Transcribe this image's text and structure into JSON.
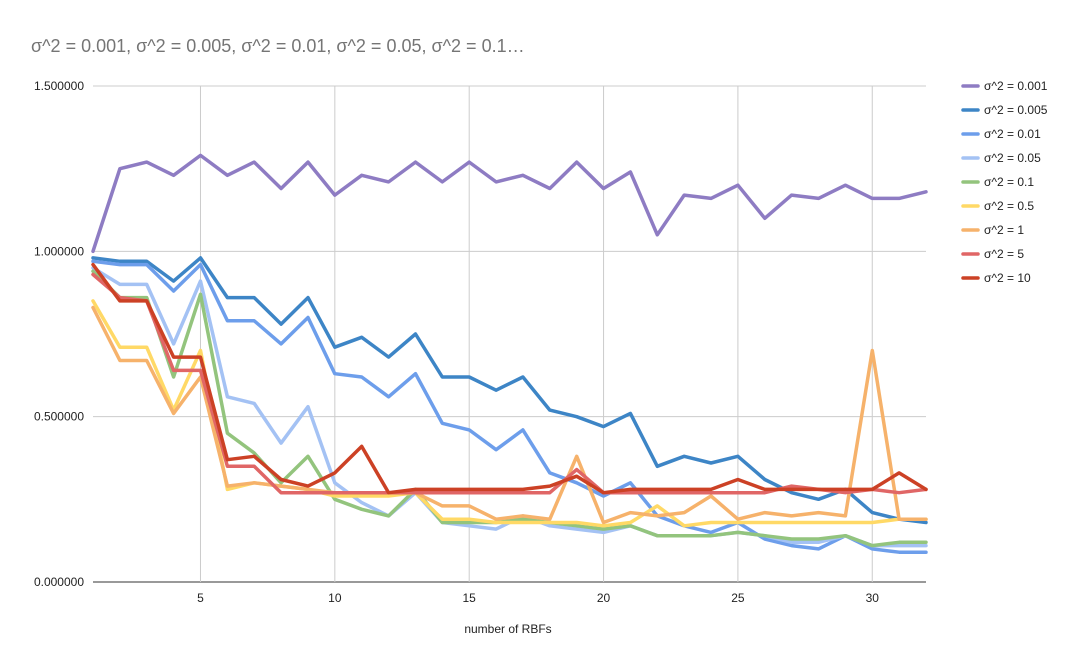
{
  "chart_data": {
    "type": "line",
    "title": "σ^2 = 0.001, σ^2 = 0.005, σ^2 = 0.01, σ^2 = 0.05, σ^2 = 0.1…",
    "xlabel": "number of RBFs",
    "ylabel": "",
    "xlim": [
      1,
      32
    ],
    "ylim": [
      0,
      1.5
    ],
    "x_ticks": [
      5,
      10,
      15,
      20,
      25,
      30
    ],
    "y_ticks": [
      "0.000000",
      "0.500000",
      "1.000000",
      "1.500000"
    ],
    "grid": true,
    "legend_position": "right",
    "x": [
      1,
      2,
      3,
      4,
      5,
      6,
      7,
      8,
      9,
      10,
      11,
      12,
      13,
      14,
      15,
      16,
      17,
      18,
      19,
      20,
      21,
      22,
      23,
      24,
      25,
      26,
      27,
      28,
      29,
      30,
      31,
      32
    ],
    "series": [
      {
        "name": "σ^2 = 0.001",
        "color": "#8e7cc3",
        "values": [
          1.0,
          1.25,
          1.27,
          1.23,
          1.29,
          1.23,
          1.27,
          1.19,
          1.27,
          1.17,
          1.23,
          1.21,
          1.27,
          1.21,
          1.27,
          1.21,
          1.23,
          1.19,
          1.27,
          1.19,
          1.24,
          1.05,
          1.17,
          1.16,
          1.2,
          1.1,
          1.17,
          1.16,
          1.2,
          1.16,
          1.16,
          1.18
        ]
      },
      {
        "name": "σ^2 = 0.005",
        "color": "#3d85c6",
        "values": [
          0.98,
          0.97,
          0.97,
          0.91,
          0.98,
          0.86,
          0.86,
          0.78,
          0.86,
          0.71,
          0.74,
          0.68,
          0.75,
          0.62,
          0.62,
          0.58,
          0.62,
          0.52,
          0.5,
          0.47,
          0.51,
          0.35,
          0.38,
          0.36,
          0.38,
          0.31,
          0.27,
          0.25,
          0.28,
          0.21,
          0.19,
          0.18
        ]
      },
      {
        "name": "σ^2 = 0.01",
        "color": "#6d9eeb",
        "values": [
          0.97,
          0.96,
          0.96,
          0.88,
          0.96,
          0.79,
          0.79,
          0.72,
          0.8,
          0.63,
          0.62,
          0.56,
          0.63,
          0.48,
          0.46,
          0.4,
          0.46,
          0.33,
          0.3,
          0.26,
          0.3,
          0.2,
          0.17,
          0.15,
          0.18,
          0.13,
          0.11,
          0.1,
          0.14,
          0.1,
          0.09,
          0.09
        ]
      },
      {
        "name": "σ^2 = 0.05",
        "color": "#a4c2f4",
        "values": [
          0.95,
          0.9,
          0.9,
          0.72,
          0.91,
          0.56,
          0.54,
          0.42,
          0.53,
          0.3,
          0.24,
          0.2,
          0.27,
          0.18,
          0.17,
          0.16,
          0.2,
          0.17,
          0.16,
          0.15,
          0.17,
          0.14,
          0.14,
          0.14,
          0.15,
          0.14,
          0.12,
          0.12,
          0.14,
          0.11,
          0.11,
          0.11
        ]
      },
      {
        "name": "σ^2 = 0.1",
        "color": "#93c47d",
        "values": [
          0.94,
          0.86,
          0.86,
          0.62,
          0.87,
          0.45,
          0.39,
          0.3,
          0.38,
          0.25,
          0.22,
          0.2,
          0.28,
          0.18,
          0.18,
          0.18,
          0.19,
          0.18,
          0.17,
          0.16,
          0.17,
          0.14,
          0.14,
          0.14,
          0.15,
          0.14,
          0.13,
          0.13,
          0.14,
          0.11,
          0.12,
          0.12
        ]
      },
      {
        "name": "σ^2 = 0.5",
        "color": "#ffd966",
        "values": [
          0.85,
          0.71,
          0.71,
          0.52,
          0.7,
          0.28,
          0.3,
          0.29,
          0.28,
          0.26,
          0.26,
          0.26,
          0.27,
          0.19,
          0.19,
          0.18,
          0.18,
          0.18,
          0.18,
          0.17,
          0.18,
          0.23,
          0.17,
          0.18,
          0.18,
          0.18,
          0.18,
          0.18,
          0.18,
          0.18,
          0.19,
          0.19
        ]
      },
      {
        "name": "σ^2 = 1",
        "color": "#f6b26b",
        "values": [
          0.83,
          0.67,
          0.67,
          0.51,
          0.62,
          0.29,
          0.3,
          0.29,
          0.28,
          0.27,
          0.27,
          0.27,
          0.27,
          0.23,
          0.23,
          0.19,
          0.2,
          0.19,
          0.38,
          0.18,
          0.21,
          0.2,
          0.21,
          0.26,
          0.19,
          0.21,
          0.2,
          0.21,
          0.2,
          0.7,
          0.19,
          0.19
        ]
      },
      {
        "name": "σ^2 = 5",
        "color": "#e06666",
        "values": [
          0.93,
          0.86,
          0.85,
          0.64,
          0.64,
          0.35,
          0.35,
          0.27,
          0.27,
          0.27,
          0.27,
          0.27,
          0.27,
          0.27,
          0.27,
          0.27,
          0.27,
          0.27,
          0.34,
          0.27,
          0.27,
          0.27,
          0.27,
          0.27,
          0.27,
          0.27,
          0.29,
          0.28,
          0.27,
          0.28,
          0.27,
          0.28
        ]
      },
      {
        "name": "σ^2 = 10",
        "color": "#cc4125",
        "values": [
          0.96,
          0.85,
          0.85,
          0.68,
          0.68,
          0.37,
          0.38,
          0.31,
          0.29,
          0.33,
          0.41,
          0.27,
          0.28,
          0.28,
          0.28,
          0.28,
          0.28,
          0.29,
          0.32,
          0.27,
          0.28,
          0.28,
          0.28,
          0.28,
          0.31,
          0.28,
          0.28,
          0.28,
          0.28,
          0.28,
          0.33,
          0.28
        ]
      }
    ]
  }
}
